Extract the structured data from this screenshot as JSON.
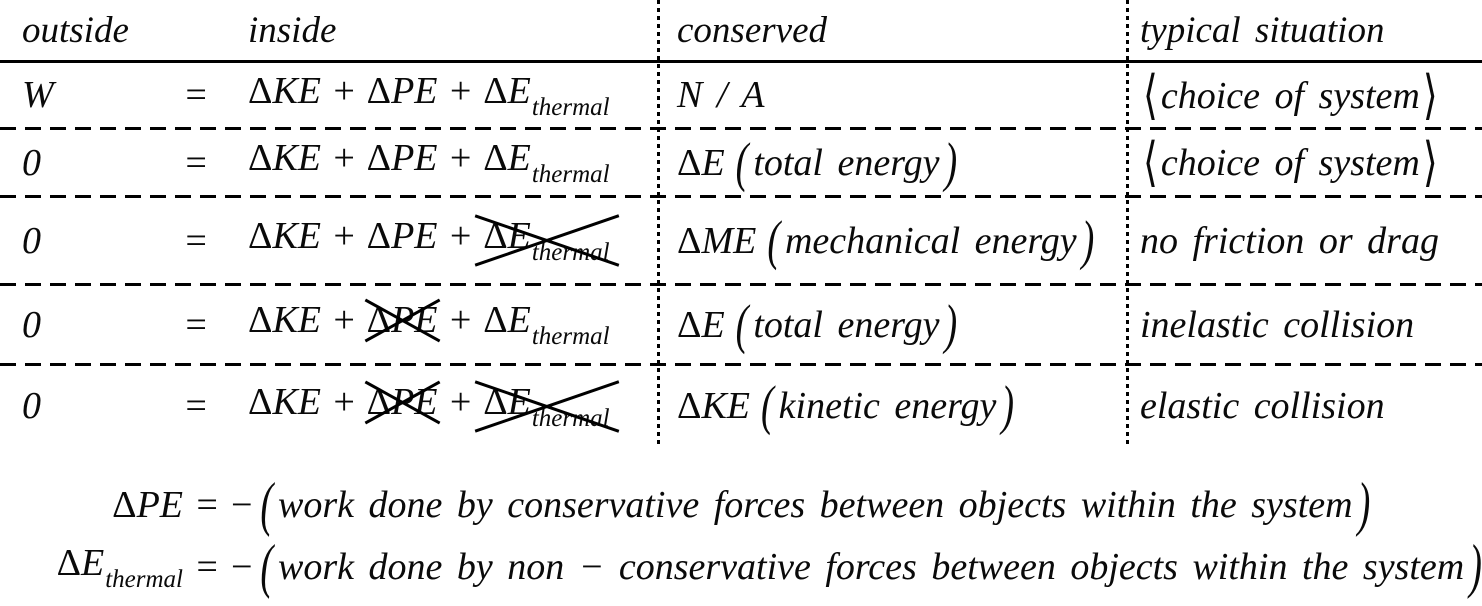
{
  "page": {
    "background": "#ffffff",
    "text_color": "#0a0a0a"
  },
  "symbols": {
    "delta": "Δ",
    "plus": "+",
    "equals": "=",
    "minus": "−",
    "lparen": "(",
    "rparen": ")",
    "langle": "⟨",
    "rangle": "⟩"
  },
  "table": {
    "headers": {
      "outside": "outside",
      "inside": "inside",
      "conserved": "conserved",
      "situation": "typical situation"
    },
    "rows": [
      {
        "outside": "W",
        "inside_terms": [
          {
            "delta": "Δ",
            "base": "KE",
            "sub": "",
            "crossed": false
          },
          {
            "delta": "Δ",
            "base": "PE",
            "sub": "",
            "crossed": false
          },
          {
            "delta": "Δ",
            "base": "E",
            "sub": "thermal",
            "crossed": false
          }
        ],
        "conserved": {
          "symbol": "N / A",
          "note": ""
        },
        "situation": {
          "text": "choice of system",
          "angle_brackets": true
        }
      },
      {
        "outside": "0",
        "inside_terms": [
          {
            "delta": "Δ",
            "base": "KE",
            "sub": "",
            "crossed": false
          },
          {
            "delta": "Δ",
            "base": "PE",
            "sub": "",
            "crossed": false
          },
          {
            "delta": "Δ",
            "base": "E",
            "sub": "thermal",
            "crossed": false
          }
        ],
        "conserved": {
          "symbol": "ΔE",
          "note": "total energy"
        },
        "situation": {
          "text": "choice of system",
          "angle_brackets": true
        }
      },
      {
        "outside": "0",
        "inside_terms": [
          {
            "delta": "Δ",
            "base": "KE",
            "sub": "",
            "crossed": false
          },
          {
            "delta": "Δ",
            "base": "PE",
            "sub": "",
            "crossed": false
          },
          {
            "delta": "Δ",
            "base": "E",
            "sub": "thermal",
            "crossed": true
          }
        ],
        "conserved": {
          "symbol": "ΔME",
          "note": "mechanical energy"
        },
        "situation": {
          "text": "no friction or drag",
          "angle_brackets": false
        }
      },
      {
        "outside": "0",
        "inside_terms": [
          {
            "delta": "Δ",
            "base": "KE",
            "sub": "",
            "crossed": false
          },
          {
            "delta": "Δ",
            "base": "PE",
            "sub": "",
            "crossed": true
          },
          {
            "delta": "Δ",
            "base": "E",
            "sub": "thermal",
            "crossed": false
          }
        ],
        "conserved": {
          "symbol": "ΔE",
          "note": "total energy"
        },
        "situation": {
          "text": "inelastic collision",
          "angle_brackets": false
        }
      },
      {
        "outside": "0",
        "inside_terms": [
          {
            "delta": "Δ",
            "base": "KE",
            "sub": "",
            "crossed": false
          },
          {
            "delta": "Δ",
            "base": "PE",
            "sub": "",
            "crossed": true
          },
          {
            "delta": "Δ",
            "base": "E",
            "sub": "thermal",
            "crossed": true
          }
        ],
        "conserved": {
          "symbol": "ΔKE",
          "note": "kinetic energy"
        },
        "situation": {
          "text": "elastic collision",
          "angle_brackets": false
        }
      }
    ]
  },
  "footnotes": [
    {
      "lhs_base": "ΔPE",
      "lhs_sub": "",
      "text": "work done by conservative forces between objects within the system"
    },
    {
      "lhs_base": "ΔE",
      "lhs_sub": "thermal",
      "text": "work done by non − conservative forces between objects within the system"
    }
  ]
}
